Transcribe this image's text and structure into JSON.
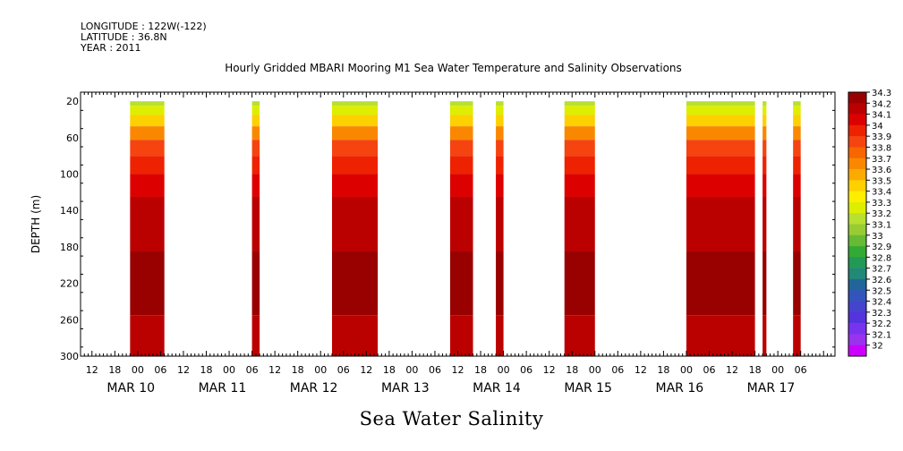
{
  "header": {
    "longitude": "LONGITUDE : 122W(-122)",
    "latitude": "LATITUDE : 36.8N",
    "year": "YEAR : 2011"
  },
  "title": "Hourly Gridded MBARI Mooring M1 Sea Water Temperature and Salinity Observations",
  "bottom_title": "Sea Water Salinity",
  "chart_data": {
    "type": "heatmap",
    "ylabel": "DEPTH (m)",
    "y_ticks": [
      20,
      60,
      100,
      140,
      180,
      220,
      260,
      300
    ],
    "ylim": [
      300,
      10
    ],
    "y_reversed": true,
    "x_range_hours": [
      -15,
      183
    ],
    "x_hour_ticks": [
      "12",
      "18",
      "00",
      "06",
      "12",
      "18",
      "00",
      "06",
      "12",
      "18",
      "00",
      "06",
      "12",
      "18",
      "00",
      "06",
      "12",
      "18",
      "00",
      "06",
      "12",
      "18",
      "00",
      "06",
      "12",
      "18",
      "00",
      "06",
      "12",
      "18",
      "00",
      "06"
    ],
    "x_date_labels": [
      "MAR 10",
      "MAR 11",
      "MAR 12",
      "MAR 13",
      "MAR 14",
      "MAR 15",
      "MAR 16",
      "MAR 17"
    ],
    "data_segments_hours": [
      [
        -2,
        7
      ],
      [
        30,
        32
      ],
      [
        51,
        63
      ],
      [
        82,
        88
      ],
      [
        94,
        96
      ],
      [
        112,
        120
      ],
      [
        144,
        162
      ],
      [
        164,
        165
      ],
      [
        172,
        174
      ]
    ],
    "depth_profile": [
      {
        "depth": 20,
        "salinity": 33.2
      },
      {
        "depth": 30,
        "salinity": 33.3
      },
      {
        "depth": 40,
        "salinity": 33.5
      },
      {
        "depth": 55,
        "salinity": 33.7
      },
      {
        "depth": 70,
        "salinity": 33.9
      },
      {
        "depth": 90,
        "salinity": 34.0
      },
      {
        "depth": 110,
        "salinity": 34.1
      },
      {
        "depth": 140,
        "salinity": 34.2
      },
      {
        "depth": 230,
        "salinity": 34.3
      },
      {
        "depth": 280,
        "salinity": 34.2
      }
    ],
    "colorbar": {
      "levels": [
        "34.3",
        "34.2",
        "34.1",
        "34",
        "33.9",
        "33.8",
        "33.7",
        "33.6",
        "33.5",
        "33.4",
        "33.3",
        "33.2",
        "33.1",
        "33",
        "32.9",
        "32.8",
        "32.7",
        "32.6",
        "32.5",
        "32.4",
        "32.3",
        "32.2",
        "32.1",
        "32"
      ],
      "colors": [
        "#990000",
        "#bb0000",
        "#dd0000",
        "#ee2200",
        "#f54410",
        "#f76600",
        "#f98800",
        "#fbaa00",
        "#fdd000",
        "#ffee00",
        "#ddee00",
        "#b8e030",
        "#99cc33",
        "#66bb33",
        "#33aa33",
        "#229955",
        "#228877",
        "#226699",
        "#3355bb",
        "#4444cc",
        "#5533dd",
        "#7733ee",
        "#9933ee",
        "#cc00ff"
      ]
    }
  }
}
